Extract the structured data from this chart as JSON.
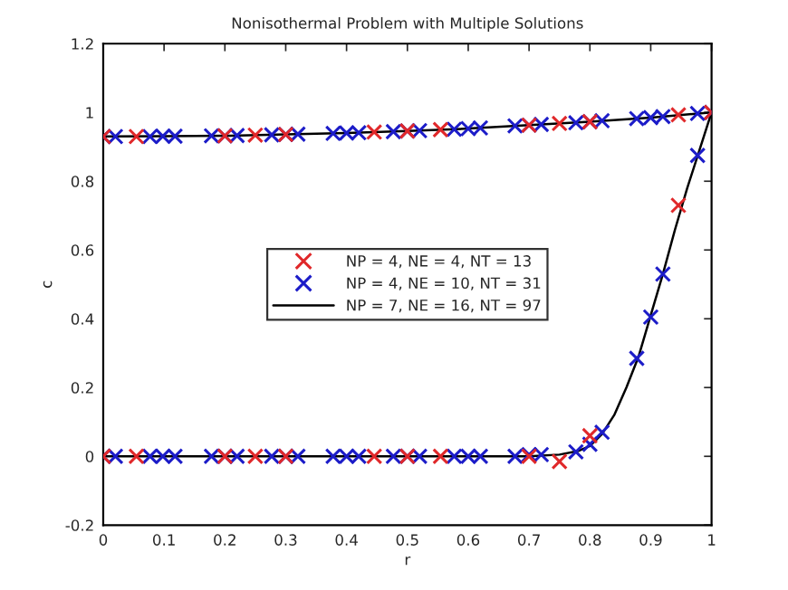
{
  "chart_data": {
    "type": "scatter",
    "title": "Nonisothermal Problem with Multiple Solutions",
    "xlabel": "r",
    "ylabel": "c",
    "xlim": [
      0,
      1
    ],
    "xticks": [
      0,
      0.1,
      0.2,
      0.3,
      0.4,
      0.5,
      0.6,
      0.7,
      0.8,
      0.9,
      1
    ],
    "ylim": [
      -0.2,
      1.2
    ],
    "yticks": [
      -0.2,
      0,
      0.2,
      0.4,
      0.6,
      0.8,
      1,
      1.2
    ],
    "grid": false,
    "legend": "center",
    "series": [
      {
        "name": "NP = 4, NE = 4, NT = 13",
        "marker": "cross",
        "color": "#e0282a",
        "x": [
          0,
          0.0545,
          0.2,
          0.25,
          0.3,
          0.4455,
          0.5,
          0.5545,
          0.7,
          0.75,
          0.8,
          0.9455,
          1,
          0,
          0.0545,
          0.2,
          0.25,
          0.3,
          0.4455,
          0.5,
          0.5545,
          0.7,
          0.75,
          0.8,
          0.9455
        ],
        "values": [
          0,
          0,
          0,
          0,
          0,
          0,
          0,
          0,
          0,
          -0.015,
          0.06,
          0.73,
          1,
          0.93,
          0.93,
          0.932,
          0.934,
          0.936,
          0.943,
          0.946,
          0.95,
          0.963,
          0.968,
          0.973,
          0.993
        ]
      },
      {
        "name": "NP = 4, NE = 10, NT = 31",
        "marker": "cross",
        "color": "#1c1cc8",
        "x": [
          0,
          0.02,
          0.077,
          0.098,
          0.118,
          0.178,
          0.2,
          0.22,
          0.277,
          0.3,
          0.32,
          0.378,
          0.4,
          0.42,
          0.477,
          0.5,
          0.52,
          0.577,
          0.6,
          0.62,
          0.677,
          0.7,
          0.72,
          0.777,
          0.8,
          0.82,
          0.877,
          0.9,
          0.92,
          0.977,
          1,
          0,
          0.02,
          0.077,
          0.098,
          0.118,
          0.178,
          0.2,
          0.22,
          0.277,
          0.3,
          0.32,
          0.378,
          0.4,
          0.42,
          0.477,
          0.5,
          0.52,
          0.577,
          0.6,
          0.62,
          0.677,
          0.7,
          0.72,
          0.777,
          0.8,
          0.82,
          0.877,
          0.9,
          0.92,
          0.977
        ],
        "values": [
          0,
          0,
          0,
          0,
          0,
          0,
          0,
          0,
          0,
          0,
          0,
          0,
          0,
          0,
          0,
          0,
          0,
          0,
          0,
          0,
          0,
          0.005,
          0.005,
          0.013,
          0.035,
          0.07,
          0.285,
          0.405,
          0.53,
          0.875,
          1,
          0.93,
          0.93,
          0.93,
          0.931,
          0.931,
          0.932,
          0.932,
          0.933,
          0.935,
          0.936,
          0.937,
          0.939,
          0.94,
          0.941,
          0.944,
          0.946,
          0.947,
          0.951,
          0.953,
          0.955,
          0.961,
          0.963,
          0.965,
          0.97,
          0.973,
          0.976,
          0.982,
          0.985,
          0.988,
          0.997
        ]
      },
      {
        "name": "NP = 7, NE = 16, NT = 97",
        "type": "line",
        "marker": "none",
        "line_style": "solid",
        "color": "#000000",
        "x": [
          0,
          0.7,
          0.75,
          0.78,
          0.8,
          0.82,
          0.84,
          0.86,
          0.88,
          0.9,
          0.92,
          0.94,
          0.96,
          0.98,
          1,
          0.9,
          0.8,
          0.7,
          0.6,
          0.5,
          0.4,
          0.3,
          0.2,
          0.1,
          0
        ],
        "values": [
          0,
          0,
          0.005,
          0.015,
          0.03,
          0.065,
          0.12,
          0.2,
          0.29,
          0.41,
          0.53,
          0.66,
          0.78,
          0.89,
          1,
          0.985,
          0.973,
          0.963,
          0.953,
          0.946,
          0.94,
          0.936,
          0.932,
          0.931,
          0.93
        ]
      }
    ]
  }
}
